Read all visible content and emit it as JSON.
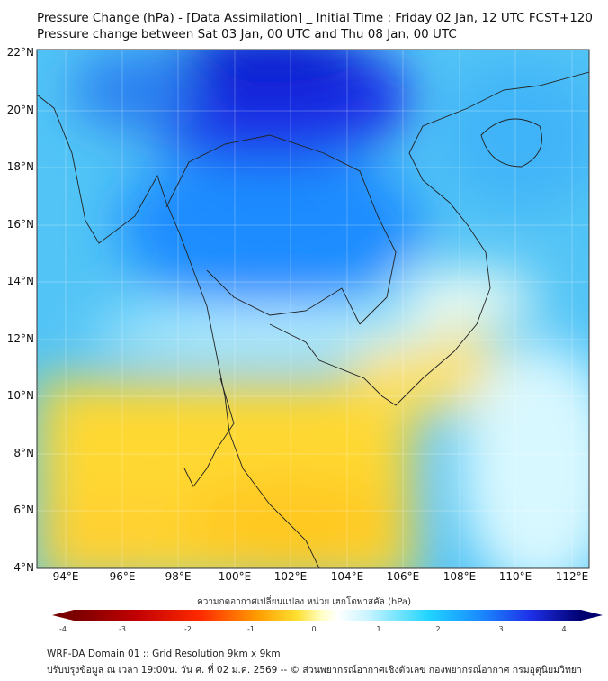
{
  "header": {
    "title_line1": "Pressure Change (hPa) - [Data Assimilation] _ Initial Time : Friday 02 Jan, 12 UTC FCST+120",
    "title_line2": "Pressure change between Sat 03 Jan, 00 UTC and Thu 08 Jan, 00 UTC"
  },
  "map": {
    "lat_labels": [
      "22°N",
      "20°N",
      "18°N",
      "16°N",
      "14°N",
      "12°N",
      "10°N",
      "8°N",
      "6°N",
      "4°N"
    ],
    "lon_labels": [
      "94°E",
      "96°E",
      "98°E",
      "100°E",
      "102°E",
      "104°E",
      "106°E",
      "108°E",
      "110°E",
      "112°E"
    ]
  },
  "colorbar": {
    "title": "ความกดอากาศเปลี่ยนแปลง หน่วย เฮกโตพาสคัล (hPa)",
    "ticks": [
      "-4",
      "-3",
      "-2",
      "-1",
      "0",
      "1",
      "2",
      "3",
      "4"
    ],
    "colors": [
      "#7a0000",
      "#e00000",
      "#ff5a00",
      "#ffb000",
      "#ffe84a",
      "#ffffc0",
      "#ffffff",
      "#c8f4ff",
      "#20d4ff",
      "#1a8cff",
      "#1e30e8",
      "#000070"
    ]
  },
  "footer": {
    "line1": "WRF-DA Domain 01 :: Grid Resolution 9km x 9km",
    "line2": "ปรับปรุงข้อมูล ณ เวลา 19:00น. วัน ศ. ที่ 02 ม.ค. 2569 -- © ส่วนพยากรณ์อากาศเชิงตัวเลข กองพยากรณ์อากาศ กรมอุตุนิยมวิทยา"
  }
}
